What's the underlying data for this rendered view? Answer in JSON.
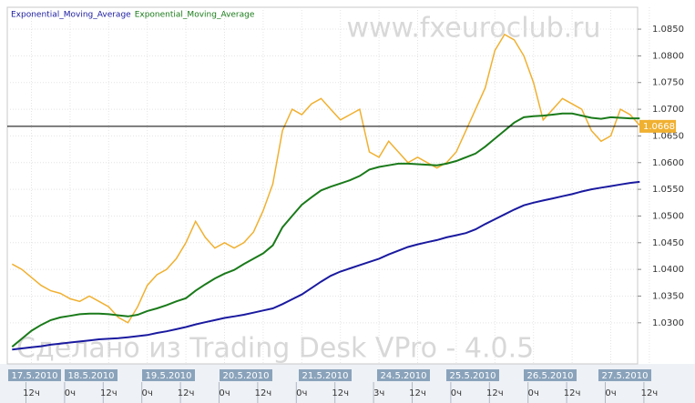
{
  "chart_data": {
    "type": "line",
    "annotations": [
      "www.fxeuroclub.ru",
      "Сделано из Trading Desk VPro - 4.0.5"
    ],
    "date_labels": [
      "17.5.2010",
      "18.5.2010",
      "19.5.2010",
      "20.5.2010",
      "21.5.2010",
      "24.5.2010",
      "25.5.2010",
      "26.5.2010",
      "27.5.2010"
    ],
    "categories": [
      null,
      null,
      "12ч",
      null,
      null,
      null,
      "0ч",
      null,
      null,
      null,
      "12ч",
      null,
      null,
      null,
      "0ч",
      null,
      null,
      null,
      "12ч",
      null,
      null,
      null,
      "0ч",
      null,
      null,
      null,
      "12ч",
      null,
      null,
      null,
      "0ч",
      null,
      null,
      null,
      "12ч",
      null,
      null,
      null,
      "3ч",
      null,
      null,
      null,
      "12ч",
      null,
      null,
      null,
      "0ч",
      null,
      null,
      null,
      "12ч",
      null,
      null,
      null,
      "0ч",
      null,
      null,
      null,
      "12ч",
      null,
      null,
      null,
      "0ч",
      null,
      null,
      null,
      "12ч"
    ],
    "series": [
      {
        "color": "#f0b030",
        "values": [
          1.041,
          1.04,
          1.0385,
          1.037,
          1.036,
          1.0355,
          1.0345,
          1.034,
          1.035,
          1.034,
          1.033,
          1.031,
          1.03,
          1.033,
          1.037,
          1.039,
          1.04,
          1.042,
          1.045,
          1.049,
          1.046,
          1.044,
          1.045,
          1.044,
          1.045,
          1.047,
          1.051,
          1.056,
          1.066,
          1.07,
          1.069,
          1.071,
          1.072,
          1.07,
          1.068,
          1.069,
          1.07,
          1.062,
          1.061,
          1.064,
          1.062,
          1.06,
          1.061,
          1.06,
          1.059,
          1.06,
          1.062,
          1.066,
          1.07,
          1.074,
          1.081,
          1.084,
          1.083,
          1.08,
          1.075,
          1.068,
          1.07,
          1.072,
          1.071,
          1.07,
          1.066,
          1.064,
          1.065,
          1.07,
          1.069,
          1.067,
          null
        ]
      },
      {
        "name": "Exponential_Moving_Average",
        "color": "#1a1aa0",
        "values": [
          1.025,
          1.0252,
          1.0254,
          1.0256,
          1.0259,
          1.0261,
          1.0263,
          1.0265,
          1.0267,
          1.0269,
          1.027,
          1.0271,
          1.0273,
          1.0275,
          1.0277,
          1.0281,
          1.0284,
          1.0288,
          1.0292,
          1.0297,
          1.0301,
          1.0305,
          1.0309,
          1.0312,
          1.0315,
          1.0319,
          1.0323,
          1.0327,
          1.0335,
          1.0344,
          1.0353,
          1.0365,
          1.0377,
          1.0388,
          1.0396,
          1.0402,
          1.0408,
          1.0414,
          1.042,
          1.0428,
          1.0435,
          1.0442,
          1.0447,
          1.0451,
          1.0455,
          1.046,
          1.0464,
          1.0468,
          1.0475,
          1.0485,
          1.0494,
          1.0503,
          1.0512,
          1.052,
          1.0525,
          1.0529,
          1.0533,
          1.0537,
          1.0541,
          1.0546,
          1.055,
          1.0553,
          1.0556,
          1.0559,
          1.0562,
          1.0564,
          null
        ]
      },
      {
        "name": "Exponential_Moving_Average",
        "color": "#1a7a1a",
        "values": [
          1.0255,
          1.027,
          1.0285,
          1.0296,
          1.0305,
          1.031,
          1.0313,
          1.0316,
          1.0317,
          1.0317,
          1.0316,
          1.0314,
          1.0312,
          1.0315,
          1.0322,
          1.0327,
          1.0333,
          1.034,
          1.0346,
          1.036,
          1.0372,
          1.0383,
          1.0392,
          1.0399,
          1.041,
          1.042,
          1.043,
          1.0445,
          1.0479,
          1.05,
          1.0521,
          1.0535,
          1.0548,
          1.0555,
          1.0561,
          1.0567,
          1.0575,
          1.0587,
          1.0592,
          1.0595,
          1.0598,
          1.0598,
          1.0597,
          1.0596,
          1.0595,
          1.0598,
          1.0603,
          1.061,
          1.0617,
          1.063,
          1.0645,
          1.066,
          1.0675,
          1.0685,
          1.0687,
          1.0688,
          1.069,
          1.0692,
          1.0692,
          1.0688,
          1.0684,
          1.0682,
          1.0685,
          1.0684,
          1.0683,
          1.0683,
          null
        ]
      }
    ],
    "last_price": 1.0668,
    "ylim": [
      1.0223,
      1.0891
    ],
    "yticks": [
      {
        "value": 1.085,
        "label": "1.0850"
      },
      {
        "value": 1.08,
        "label": "1.0800"
      },
      {
        "value": 1.075,
        "label": "1.0750"
      },
      {
        "value": 1.07,
        "label": "1.0700"
      },
      {
        "value": 1.065,
        "label": "1.0650"
      },
      {
        "value": 1.06,
        "label": "1.0600"
      },
      {
        "value": 1.055,
        "label": "1.0550"
      },
      {
        "value": 1.05,
        "label": "1.0500"
      },
      {
        "value": 1.045,
        "label": "1.0450"
      },
      {
        "value": 1.04,
        "label": "1.0400"
      },
      {
        "value": 1.035,
        "label": "1.0350"
      },
      {
        "value": 1.03,
        "label": "1.0300"
      }
    ],
    "grid": true
  }
}
